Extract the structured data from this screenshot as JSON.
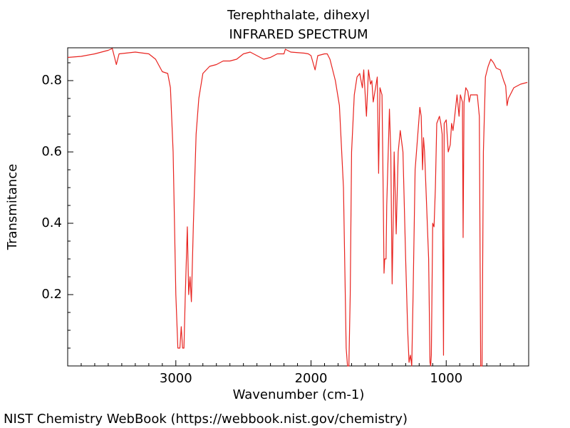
{
  "chart_data": {
    "type": "line",
    "title": "Terephthalate, dihexyl",
    "subtitle": "INFRARED SPECTRUM",
    "x_label": "Wavenumber (cm-1)",
    "y_label": "Transmitance",
    "credit": "NIST Chemistry WebBook (https://webbook.nist.gov/chemistry)",
    "xlim": [
      3800,
      390
    ],
    "ylim": [
      0,
      0.892
    ],
    "xticks": [
      3000,
      2000,
      1000
    ],
    "yticks": [
      0.2,
      0.4,
      0.6,
      0.8
    ],
    "xminorticks": [
      3700,
      3600,
      3500,
      3400,
      3300,
      3200,
      3100,
      2900,
      2800,
      2700,
      2600,
      2500,
      2400,
      2300,
      2200,
      2100,
      1900,
      1800,
      1700,
      1600,
      1500,
      1400,
      1300,
      1200,
      1100,
      900,
      800,
      700,
      600,
      500
    ],
    "yminorticks": [
      0.05,
      0.1,
      0.15,
      0.25,
      0.3,
      0.35,
      0.45,
      0.5,
      0.55,
      0.65,
      0.7,
      0.75,
      0.85
    ],
    "x": [
      3800,
      3700,
      3600,
      3500,
      3470,
      3440,
      3420,
      3300,
      3200,
      3150,
      3100,
      3060,
      3040,
      3020,
      3000,
      2985,
      2970,
      2960,
      2950,
      2940,
      2930,
      2915,
      2905,
      2895,
      2885,
      2870,
      2850,
      2830,
      2800,
      2750,
      2700,
      2650,
      2600,
      2550,
      2500,
      2450,
      2400,
      2350,
      2300,
      2250,
      2200,
      2190,
      2150,
      2050,
      2020,
      2000,
      1970,
      1950,
      1900,
      1880,
      1860,
      1820,
      1790,
      1760,
      1740,
      1730,
      1720,
      1710,
      1700,
      1680,
      1660,
      1640,
      1620,
      1610,
      1590,
      1575,
      1560,
      1550,
      1540,
      1510,
      1500,
      1490,
      1475,
      1465,
      1460,
      1455,
      1445,
      1440,
      1420,
      1410,
      1400,
      1390,
      1385,
      1375,
      1370,
      1355,
      1340,
      1320,
      1300,
      1285,
      1275,
      1265,
      1255,
      1245,
      1230,
      1210,
      1195,
      1185,
      1175,
      1168,
      1160,
      1150,
      1130,
      1120,
      1115,
      1110,
      1100,
      1090,
      1080,
      1070,
      1050,
      1040,
      1030,
      1020,
      1015,
      1000,
      985,
      970,
      960,
      950,
      940,
      920,
      905,
      895,
      880,
      875,
      868,
      855,
      840,
      830,
      820,
      790,
      770,
      755,
      745,
      735,
      725,
      710,
      690,
      670,
      650,
      630,
      600,
      575,
      560,
      550,
      540,
      500,
      450,
      400
    ],
    "series": [
      {
        "name": "spectrum",
        "color": "#e8231f",
        "values": [
          0.865,
          0.868,
          0.875,
          0.885,
          0.89,
          0.845,
          0.875,
          0.88,
          0.875,
          0.86,
          0.825,
          0.82,
          0.78,
          0.6,
          0.2,
          0.05,
          0.05,
          0.11,
          0.05,
          0.05,
          0.2,
          0.39,
          0.2,
          0.25,
          0.18,
          0.4,
          0.65,
          0.75,
          0.82,
          0.84,
          0.845,
          0.855,
          0.855,
          0.86,
          0.875,
          0.88,
          0.87,
          0.86,
          0.865,
          0.875,
          0.875,
          0.888,
          0.88,
          0.877,
          0.875,
          0.87,
          0.83,
          0.87,
          0.875,
          0.875,
          0.86,
          0.8,
          0.73,
          0.5,
          0.05,
          0.0,
          0.0,
          0.2,
          0.6,
          0.76,
          0.81,
          0.82,
          0.78,
          0.83,
          0.7,
          0.83,
          0.79,
          0.8,
          0.74,
          0.81,
          0.54,
          0.78,
          0.76,
          0.45,
          0.26,
          0.3,
          0.3,
          0.45,
          0.72,
          0.6,
          0.23,
          0.45,
          0.6,
          0.45,
          0.37,
          0.6,
          0.66,
          0.6,
          0.3,
          0.1,
          0.01,
          0.03,
          0.0,
          0.2,
          0.55,
          0.65,
          0.725,
          0.7,
          0.55,
          0.64,
          0.6,
          0.5,
          0.3,
          0.01,
          0.0,
          0.03,
          0.4,
          0.39,
          0.5,
          0.68,
          0.7,
          0.68,
          0.65,
          0.03,
          0.68,
          0.69,
          0.6,
          0.62,
          0.68,
          0.66,
          0.69,
          0.76,
          0.7,
          0.76,
          0.74,
          0.36,
          0.74,
          0.78,
          0.77,
          0.74,
          0.76,
          0.76,
          0.76,
          0.7,
          0.0,
          0.0,
          0.6,
          0.81,
          0.84,
          0.86,
          0.85,
          0.835,
          0.83,
          0.8,
          0.785,
          0.73,
          0.75,
          0.78,
          0.79,
          0.795
        ]
      }
    ]
  }
}
